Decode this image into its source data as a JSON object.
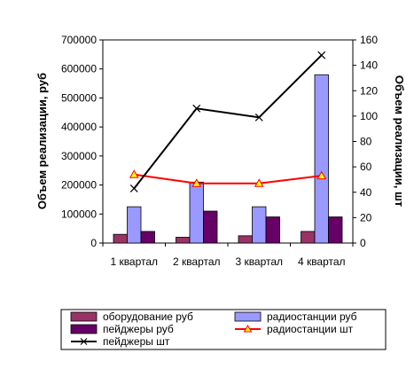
{
  "chart_data": {
    "type": "bar",
    "categories": [
      "1 квартал",
      "2 квартал",
      "3 квартал",
      "4 квартал"
    ],
    "left_axis": {
      "label": "Объем реализации, руб",
      "ylim": [
        0,
        700000
      ],
      "ticks": [
        "0",
        "100000",
        "200000",
        "300000",
        "400000",
        "500000",
        "600000",
        "700000"
      ]
    },
    "right_axis": {
      "label": "Объем реализации, шт",
      "ylim": [
        0,
        160
      ],
      "ticks": [
        "0",
        "20",
        "40",
        "60",
        "80",
        "100",
        "120",
        "140",
        "160"
      ]
    },
    "bar_series": [
      {
        "name": "оборудование руб",
        "axis": "left",
        "color": "#993366",
        "values": [
          30000,
          20000,
          25000,
          40000
        ]
      },
      {
        "name": "радиостанции руб",
        "axis": "left",
        "color": "#9999FF",
        "values": [
          125000,
          210000,
          125000,
          580000
        ]
      },
      {
        "name": "пейджеры руб",
        "axis": "left",
        "color": "#660066",
        "values": [
          40000,
          110000,
          90000,
          90000
        ]
      }
    ],
    "line_series": [
      {
        "name": "радиостанции шт",
        "axis": "right",
        "color": "#FF0000",
        "marker": "triangle",
        "marker_fill": "#FFFF00",
        "values": [
          54,
          47,
          47,
          53
        ]
      },
      {
        "name": "пейджеры шт",
        "axis": "right",
        "color": "#000000",
        "marker": "x",
        "values": [
          43,
          106,
          99,
          148
        ]
      }
    ],
    "legend": {
      "placement": "bottom",
      "entries": [
        {
          "label": "оборудование руб",
          "kind": "bar",
          "color": "#993366"
        },
        {
          "label": "радиостанции руб",
          "kind": "bar",
          "color": "#9999FF"
        },
        {
          "label": "пейджеры руб",
          "kind": "bar",
          "color": "#660066"
        },
        {
          "label": "радиостанции шт",
          "kind": "line",
          "color": "#FF0000",
          "marker": "triangle"
        },
        {
          "label": "пейджеры шт",
          "kind": "line",
          "color": "#000000",
          "marker": "x"
        }
      ]
    },
    "grid": false
  }
}
